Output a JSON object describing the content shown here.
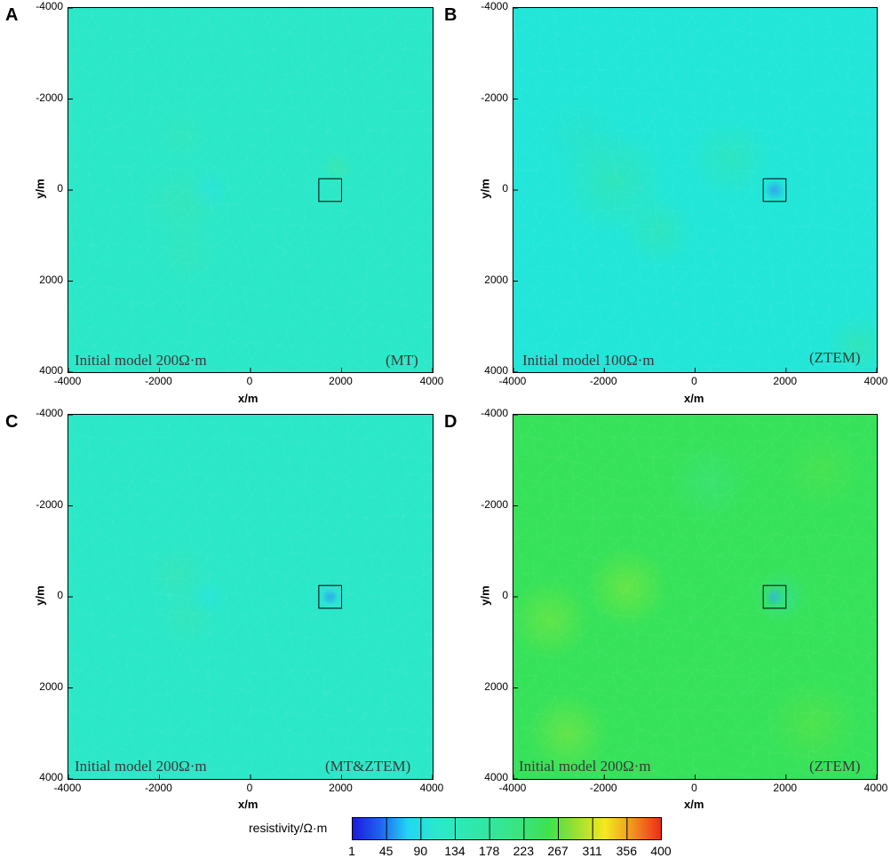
{
  "chart_data": [
    {
      "type": "heatmap",
      "panel_label": "A",
      "annotation_left": "Initial model 200Ω·m",
      "annotation_right": "(MT)",
      "xlabel": "x/m",
      "ylabel": "y/m",
      "xlim": [
        -4000,
        4000
      ],
      "ylim": [
        -4000,
        4000
      ],
      "y_inverted": true,
      "x_ticks": [
        "-4000",
        "-2000",
        "0",
        "2000",
        "4000"
      ],
      "y_ticks": [
        "-4000",
        "-2000",
        "0",
        "2000",
        "4000"
      ],
      "target_box": {
        "x": [
          1500,
          2000
        ],
        "y": [
          -250,
          250
        ]
      },
      "background_color": "#2be8c8",
      "anomalies": [
        {
          "x": 1900,
          "y": -500,
          "r": 350,
          "color": "#3de6a8",
          "strength": 0.7
        },
        {
          "x": -900,
          "y": 0,
          "r": 450,
          "color": "#27e3e8",
          "strength": 0.6
        },
        {
          "x": -1500,
          "y": 300,
          "r": 900,
          "color": "#40e4b0",
          "strength": 0.45
        },
        {
          "x": -1500,
          "y": -1200,
          "r": 600,
          "color": "#40e4b0",
          "strength": 0.35
        },
        {
          "x": -1400,
          "y": 1400,
          "r": 700,
          "color": "#40e4b0",
          "strength": 0.35
        }
      ]
    },
    {
      "type": "heatmap",
      "panel_label": "B",
      "annotation_left": "Initial model 100Ω·m",
      "annotation_right": "(ZTEM)",
      "xlabel": "x/m",
      "ylabel": "y/m",
      "xlim": [
        -4000,
        4000
      ],
      "ylim": [
        -4000,
        4000
      ],
      "y_inverted": true,
      "x_ticks": [
        "-4000",
        "-2000",
        "0",
        "2000",
        "4000"
      ],
      "y_ticks": [
        "-4000",
        "-2000",
        "0",
        "2000",
        "4000"
      ],
      "target_box": {
        "x": [
          1500,
          2000
        ],
        "y": [
          -250,
          250
        ]
      },
      "background_color": "#22e6d8",
      "anomalies": [
        {
          "x": 1750,
          "y": 0,
          "r": 230,
          "color": "#2e9cec",
          "strength": 0.85
        },
        {
          "x": -1800,
          "y": -200,
          "r": 1200,
          "color": "#3ae4a4",
          "strength": 0.55
        },
        {
          "x": -800,
          "y": 900,
          "r": 800,
          "color": "#3ae4a4",
          "strength": 0.5
        },
        {
          "x": 800,
          "y": -700,
          "r": 900,
          "color": "#3ae4a4",
          "strength": 0.45
        },
        {
          "x": -2500,
          "y": -1200,
          "r": 900,
          "color": "#30e0b8",
          "strength": 0.35
        },
        {
          "x": 3600,
          "y": 3400,
          "r": 700,
          "color": "#3ae4a4",
          "strength": 0.55
        }
      ]
    },
    {
      "type": "heatmap",
      "panel_label": "C",
      "annotation_left": "Initial model 200Ω·m",
      "annotation_right": "(MT&ZTEM)",
      "xlabel": "x/m",
      "ylabel": "y/m",
      "xlim": [
        -4000,
        4000
      ],
      "ylim": [
        -4000,
        4000
      ],
      "y_inverted": true,
      "x_ticks": [
        "-4000",
        "-2000",
        "0",
        "2000",
        "4000"
      ],
      "y_ticks": [
        "-4000",
        "-2000",
        "0",
        "2000",
        "4000"
      ],
      "target_box": {
        "x": [
          1500,
          2000
        ],
        "y": [
          -250,
          250
        ]
      },
      "background_color": "#2be8c8",
      "anomalies": [
        {
          "x": 1750,
          "y": 0,
          "r": 170,
          "color": "#2a78e8",
          "strength": 0.9
        },
        {
          "x": 1750,
          "y": 0,
          "r": 380,
          "color": "#28d6ee",
          "strength": 0.55
        },
        {
          "x": -1600,
          "y": -500,
          "r": 700,
          "color": "#40e4b0",
          "strength": 0.5
        },
        {
          "x": -1400,
          "y": 500,
          "r": 650,
          "color": "#40e4b0",
          "strength": 0.45
        },
        {
          "x": -900,
          "y": 0,
          "r": 400,
          "color": "#27e3e8",
          "strength": 0.5
        }
      ]
    },
    {
      "type": "heatmap",
      "panel_label": "D",
      "annotation_left": "Initial model 200Ω·m",
      "annotation_right": "(ZTEM)",
      "xlabel": "x/m",
      "ylabel": "y/m",
      "xlim": [
        -4000,
        4000
      ],
      "ylim": [
        -4000,
        4000
      ],
      "y_inverted": true,
      "x_ticks": [
        "-4000",
        "-2000",
        "0",
        "2000",
        "4000"
      ],
      "y_ticks": [
        "-4000",
        "-2000",
        "0",
        "2000",
        "4000"
      ],
      "target_box": {
        "x": [
          1500,
          2000
        ],
        "y": [
          -250,
          250
        ]
      },
      "background_color": "#36e25a",
      "anomalies": [
        {
          "x": 1750,
          "y": 0,
          "r": 220,
          "color": "#2e9cec",
          "strength": 0.9
        },
        {
          "x": 1900,
          "y": 0,
          "r": 600,
          "color": "#2fe0a0",
          "strength": 0.6
        },
        {
          "x": -1500,
          "y": -200,
          "r": 900,
          "color": "#8be838",
          "strength": 0.55
        },
        {
          "x": -3200,
          "y": 500,
          "r": 900,
          "color": "#8be838",
          "strength": 0.5
        },
        {
          "x": 300,
          "y": -2500,
          "r": 900,
          "color": "#3ee48a",
          "strength": 0.45
        },
        {
          "x": 2600,
          "y": 2800,
          "r": 1000,
          "color": "#6be440",
          "strength": 0.45
        },
        {
          "x": -2800,
          "y": 3000,
          "r": 900,
          "color": "#9ce838",
          "strength": 0.45
        },
        {
          "x": 2800,
          "y": -2800,
          "r": 900,
          "color": "#5ee448",
          "strength": 0.4
        }
      ]
    }
  ],
  "colorbar": {
    "title": "resistivity/Ω·m",
    "ticks": [
      "1",
      "45",
      "90",
      "134",
      "178",
      "223",
      "267",
      "311",
      "356",
      "400"
    ],
    "colors": [
      "#1a1adc",
      "#1e64f0",
      "#22d6f4",
      "#2ae8cc",
      "#2ee8b4",
      "#34e69c",
      "#3ae47c",
      "#3ee24c",
      "#9ee032",
      "#f6e81e",
      "#f29020",
      "#ee2a1a"
    ]
  }
}
